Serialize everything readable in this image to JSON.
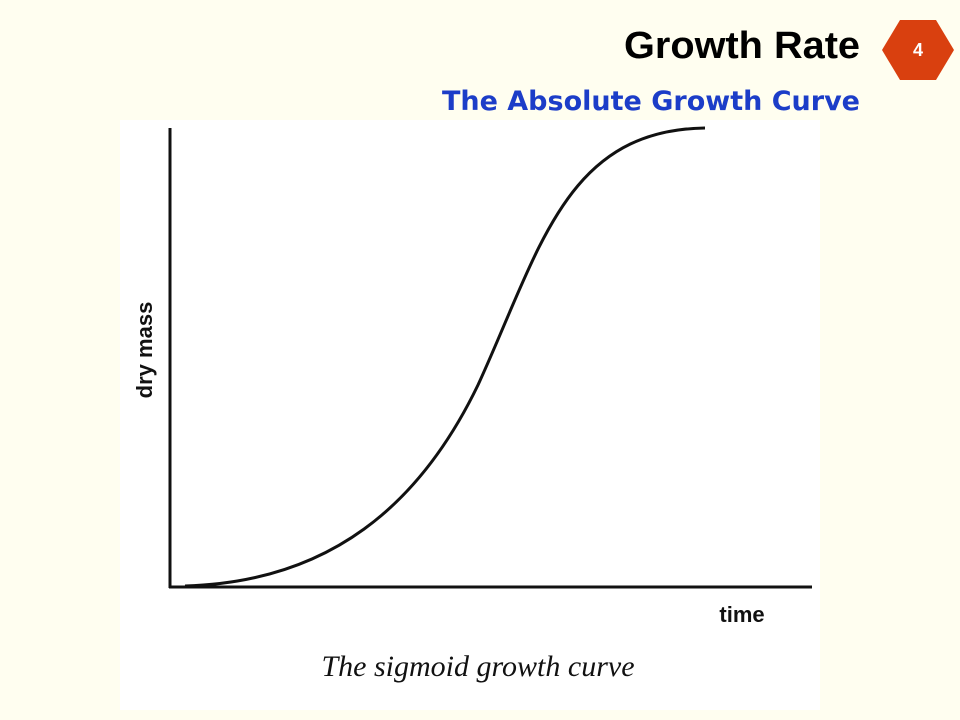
{
  "header": {
    "title": "Growth Rate",
    "subtitle": "The Absolute Growth Curve",
    "slide_number": "4"
  },
  "figure": {
    "y_label": "dry mass",
    "x_label": "time",
    "caption": "The sigmoid growth curve"
  }
}
